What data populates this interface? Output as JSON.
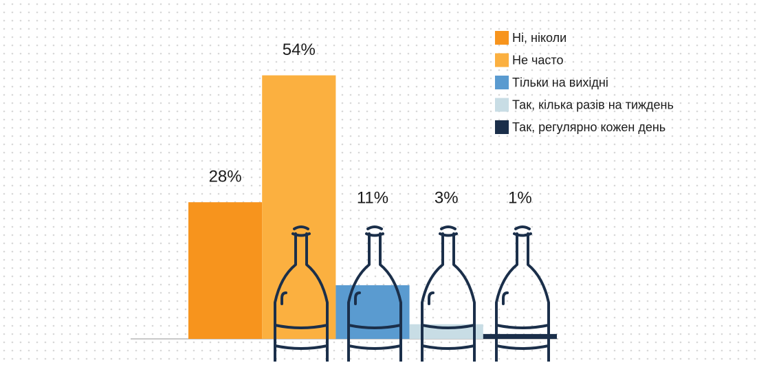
{
  "chart_data": {
    "type": "bar",
    "series": [
      {
        "name": "Ні, ніколи",
        "color": "#f7941d",
        "values": [
          28
        ],
        "value_labels": [
          "28%"
        ]
      },
      {
        "name": "Не часто",
        "color": "#fbb040",
        "values": [
          54
        ],
        "value_labels": [
          "54%"
        ]
      },
      {
        "name": "Тільки на вихідні",
        "color": "#5a9bd0",
        "values": [
          11
        ],
        "value_labels": [
          "11%"
        ]
      },
      {
        "name": "Так, кілька разів на тиждень",
        "color": "#c8dde5",
        "values": [
          3
        ],
        "value_labels": [
          "3%"
        ]
      },
      {
        "name": "Так, регулярно кожен день",
        "color": "#1b2f4a",
        "values": [
          1
        ],
        "value_labels": [
          "1%"
        ]
      }
    ],
    "legend": "top-right"
  }
}
